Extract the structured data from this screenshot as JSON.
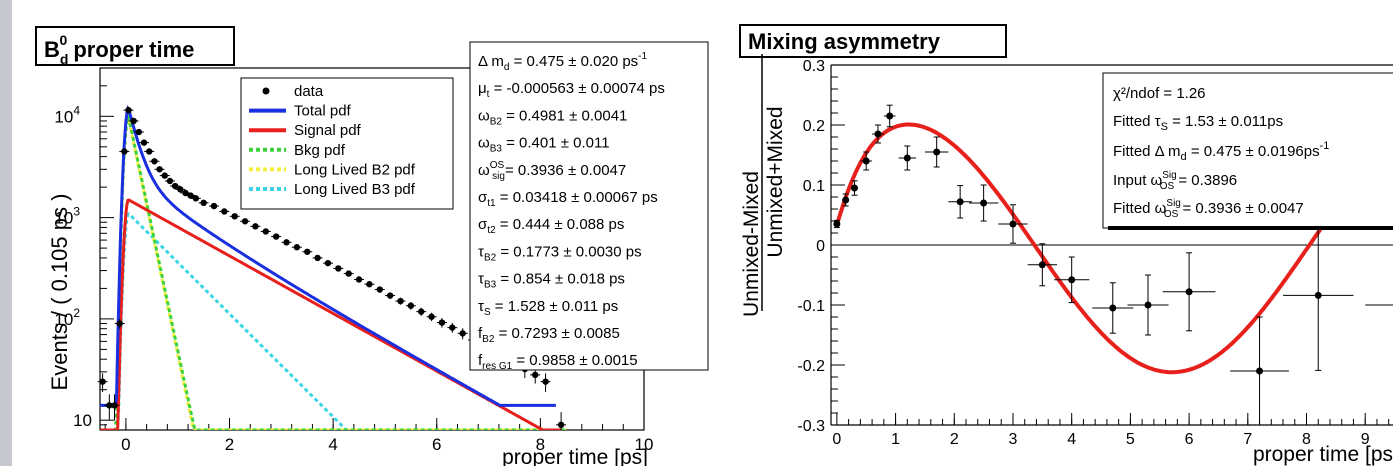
{
  "chart_data": [
    {
      "type": "scatter",
      "title": "B_d^0 proper time",
      "title_main": "B",
      "title_sub": "d",
      "title_sup": "0",
      "title_rest": " proper time",
      "xlabel": "proper time [ps]",
      "ylabel": "Events / ( 0.105 ps )",
      "yscale": "log",
      "xlim": [
        -0.5,
        10
      ],
      "ylim": [
        8,
        30000
      ],
      "x_ticks": [
        "0",
        "2",
        "4",
        "6",
        "8",
        "10"
      ],
      "y_ticks": [
        "10",
        "10^2",
        "10^3",
        "10^4"
      ],
      "legend_position": "top-center",
      "legend": [
        {
          "label": "data",
          "color": "#000000",
          "style": "marker"
        },
        {
          "label": "Total pdf",
          "color": "#1a2fe0",
          "style": "solid"
        },
        {
          "label": "Signal pdf",
          "color": "#e8201c",
          "style": "solid"
        },
        {
          "label": "Bkg pdf",
          "color": "#3cd23c",
          "style": "dotted"
        },
        {
          "label": "Long Lived B2 pdf",
          "color": "#f2ee3a",
          "style": "dotted"
        },
        {
          "label": "Long Lived B3 pdf",
          "color": "#39d7e6",
          "style": "dotted"
        }
      ],
      "params": [
        {
          "sym": "Δ m",
          "sub": "d",
          "sup": "",
          "val": "= 0.475 ± 0.020 ps",
          "unit_sup": "-1"
        },
        {
          "sym": "μ",
          "sub": "t",
          "sup": "",
          "val": "= -0.000563 ± 0.00074 ps",
          "unit_sup": ""
        },
        {
          "sym": "ω",
          "sub": "B2",
          "sup": "",
          "val": "= 0.4981 ± 0.0041",
          "unit_sup": ""
        },
        {
          "sym": "ω",
          "sub": "B3",
          "sup": "",
          "val": "= 0.401 ± 0.011",
          "unit_sup": ""
        },
        {
          "sym": "ω",
          "sub": "sig",
          "sup": "OS",
          "val": "= 0.3936 ± 0.0047",
          "unit_sup": ""
        },
        {
          "sym": "σ",
          "sub": "t1",
          "sup": "",
          "val": "= 0.03418 ± 0.00067 ps",
          "unit_sup": ""
        },
        {
          "sym": "σ",
          "sub": "t2",
          "sup": "",
          "val": "= 0.444 ± 0.088 ps",
          "unit_sup": ""
        },
        {
          "sym": "τ",
          "sub": "B2",
          "sup": "",
          "val": "= 0.1773 ± 0.0030 ps",
          "unit_sup": ""
        },
        {
          "sym": "τ",
          "sub": "B3",
          "sup": "",
          "val": "= 0.854 ± 0.018 ps",
          "unit_sup": ""
        },
        {
          "sym": "τ",
          "sub": "S",
          "sup": "",
          "val": "= 1.528 ± 0.011 ps",
          "unit_sup": ""
        },
        {
          "sym": "f",
          "sub": "B2",
          "sup": "",
          "val": "= 0.7293 ± 0.0085",
          "unit_sup": ""
        },
        {
          "sym": "f",
          "sub": "res G1",
          "sup": "",
          "val": "= 0.9858 ± 0.0015",
          "unit_sup": ""
        }
      ],
      "data_points": [
        {
          "x": -0.45,
          "y": 24,
          "err": 5
        },
        {
          "x": -0.32,
          "y": 14,
          "err": 4
        },
        {
          "x": -0.22,
          "y": 14,
          "err": 4
        },
        {
          "x": -0.12,
          "y": 90,
          "err": 10
        },
        {
          "x": -0.03,
          "y": 4500,
          "err": 70
        },
        {
          "x": 0.05,
          "y": 11500,
          "err": 110
        },
        {
          "x": 0.15,
          "y": 9000,
          "err": 95
        },
        {
          "x": 0.25,
          "y": 7000,
          "err": 85
        },
        {
          "x": 0.35,
          "y": 5500,
          "err": 75
        },
        {
          "x": 0.45,
          "y": 4500,
          "err": 67
        },
        {
          "x": 0.55,
          "y": 3600,
          "err": 60
        },
        {
          "x": 0.65,
          "y": 3000,
          "err": 55
        },
        {
          "x": 0.75,
          "y": 2600,
          "err": 51
        },
        {
          "x": 0.85,
          "y": 2300,
          "err": 48
        },
        {
          "x": 0.95,
          "y": 2050,
          "err": 45
        },
        {
          "x": 1.05,
          "y": 1900,
          "err": 44
        },
        {
          "x": 1.15,
          "y": 1750,
          "err": 42
        },
        {
          "x": 1.25,
          "y": 1650,
          "err": 41
        },
        {
          "x": 1.35,
          "y": 1550,
          "err": 39
        },
        {
          "x": 1.5,
          "y": 1400,
          "err": 37
        },
        {
          "x": 1.7,
          "y": 1300,
          "err": 36
        },
        {
          "x": 1.9,
          "y": 1150,
          "err": 34
        },
        {
          "x": 2.1,
          "y": 1030,
          "err": 32
        },
        {
          "x": 2.3,
          "y": 920,
          "err": 30
        },
        {
          "x": 2.5,
          "y": 820,
          "err": 29
        },
        {
          "x": 2.7,
          "y": 730,
          "err": 27
        },
        {
          "x": 2.9,
          "y": 650,
          "err": 25
        },
        {
          "x": 3.1,
          "y": 570,
          "err": 24
        },
        {
          "x": 3.3,
          "y": 510,
          "err": 23
        },
        {
          "x": 3.5,
          "y": 460,
          "err": 21
        },
        {
          "x": 3.7,
          "y": 400,
          "err": 20
        },
        {
          "x": 3.9,
          "y": 355,
          "err": 19
        },
        {
          "x": 4.1,
          "y": 315,
          "err": 18
        },
        {
          "x": 4.3,
          "y": 280,
          "err": 17
        },
        {
          "x": 4.5,
          "y": 245,
          "err": 16
        },
        {
          "x": 4.7,
          "y": 220,
          "err": 15
        },
        {
          "x": 4.9,
          "y": 195,
          "err": 14
        },
        {
          "x": 5.1,
          "y": 170,
          "err": 13
        },
        {
          "x": 5.3,
          "y": 150,
          "err": 12
        },
        {
          "x": 5.5,
          "y": 135,
          "err": 12
        },
        {
          "x": 5.7,
          "y": 118,
          "err": 11
        },
        {
          "x": 5.9,
          "y": 105,
          "err": 10
        },
        {
          "x": 6.1,
          "y": 92,
          "err": 10
        },
        {
          "x": 6.3,
          "y": 82,
          "err": 9
        },
        {
          "x": 6.5,
          "y": 72,
          "err": 9
        },
        {
          "x": 6.7,
          "y": 62,
          "err": 8
        },
        {
          "x": 6.9,
          "y": 55,
          "err": 7
        },
        {
          "x": 7.1,
          "y": 48,
          "err": 7
        },
        {
          "x": 7.3,
          "y": 42,
          "err": 6
        },
        {
          "x": 7.5,
          "y": 37,
          "err": 6
        },
        {
          "x": 7.7,
          "y": 32,
          "err": 6
        },
        {
          "x": 7.9,
          "y": 28,
          "err": 5
        },
        {
          "x": 8.1,
          "y": 24,
          "err": 5
        },
        {
          "x": 8.4,
          "y": 9,
          "err": 3
        }
      ]
    },
    {
      "type": "scatter",
      "title": "Mixing asymmetry",
      "xlabel": "proper time [ps",
      "ylabel_numerator": "Unmixed-Mixed",
      "ylabel_denominator": "Unmixed+Mixed",
      "xlim": [
        -0.1,
        10
      ],
      "ylim": [
        -0.3,
        0.3
      ],
      "x_ticks": [
        "0",
        "1",
        "2",
        "3",
        "4",
        "5",
        "6",
        "7",
        "8",
        "9",
        "1"
      ],
      "y_ticks": [
        "-0.3",
        "-0.2",
        "-0.1",
        "0",
        "0.1",
        "0.2",
        "0.3"
      ],
      "legend_position": "top-right",
      "stats": [
        {
          "text": "χ²/ndof = 1.26"
        },
        {
          "text": "Fitted τ_S = 1.53 ± 0.011ps"
        },
        {
          "text": "Fitted Δ m_d = 0.475 ± 0.0196ps^-1"
        },
        {
          "text": "Input ω_OS^Sig = 0.3896"
        },
        {
          "text": "Fitted ω_OS^Sig = 0.3936 ± 0.0047"
        }
      ],
      "stats_lines": {
        "l1": "χ²/ndof = 1.26",
        "l2a": "Fitted τ",
        "l2s": "S",
        "l2b": " = 1.53 ± 0.011ps",
        "l3a": "Fitted Δ m",
        "l3s": "d",
        "l3b": " = 0.475 ± 0.0196ps",
        "l3sup": "-1",
        "l4a": "Input ω",
        "l4sup": "Sig",
        "l4sub": "OS",
        "l4b": " = 0.3896",
        "l5a": "Fitted ω",
        "l5sup": "Sig",
        "l5sub": "OS",
        "l5b": " = 0.3936 ± 0.0047"
      },
      "fit": {
        "amplitude": 0.21,
        "delta_m": 0.475,
        "offset": -0.002,
        "color": "#e8201c"
      },
      "data_points": [
        {
          "x": 0.0,
          "y": 0.035,
          "xerr": 0.05,
          "yerr": 0.006
        },
        {
          "x": 0.15,
          "y": 0.075,
          "xerr": 0.05,
          "yerr": 0.01
        },
        {
          "x": 0.3,
          "y": 0.095,
          "xerr": 0.05,
          "yerr": 0.012
        },
        {
          "x": 0.5,
          "y": 0.14,
          "xerr": 0.1,
          "yerr": 0.015
        },
        {
          "x": 0.7,
          "y": 0.185,
          "xerr": 0.1,
          "yerr": 0.015
        },
        {
          "x": 0.9,
          "y": 0.215,
          "xerr": 0.1,
          "yerr": 0.018
        },
        {
          "x": 1.2,
          "y": 0.145,
          "xerr": 0.15,
          "yerr": 0.02
        },
        {
          "x": 1.7,
          "y": 0.155,
          "xerr": 0.2,
          "yerr": 0.025
        },
        {
          "x": 2.1,
          "y": 0.072,
          "xerr": 0.2,
          "yerr": 0.027
        },
        {
          "x": 2.5,
          "y": 0.07,
          "xerr": 0.25,
          "yerr": 0.03
        },
        {
          "x": 3.0,
          "y": 0.035,
          "xerr": 0.25,
          "yerr": 0.032
        },
        {
          "x": 3.5,
          "y": -0.033,
          "xerr": 0.25,
          "yerr": 0.035
        },
        {
          "x": 4.0,
          "y": -0.058,
          "xerr": 0.3,
          "yerr": 0.038
        },
        {
          "x": 4.7,
          "y": -0.105,
          "xerr": 0.35,
          "yerr": 0.042
        },
        {
          "x": 5.3,
          "y": -0.1,
          "xerr": 0.35,
          "yerr": 0.05
        },
        {
          "x": 6.0,
          "y": -0.078,
          "xerr": 0.45,
          "yerr": 0.065
        },
        {
          "x": 7.2,
          "y": -0.21,
          "xerr": 0.5,
          "yerr": 0.09
        },
        {
          "x": 8.2,
          "y": -0.084,
          "xerr": 0.6,
          "yerr": 0.125
        },
        {
          "x": 9.6,
          "y": -0.1,
          "xerr": 0.6,
          "yerr": 0.175
        }
      ]
    }
  ]
}
